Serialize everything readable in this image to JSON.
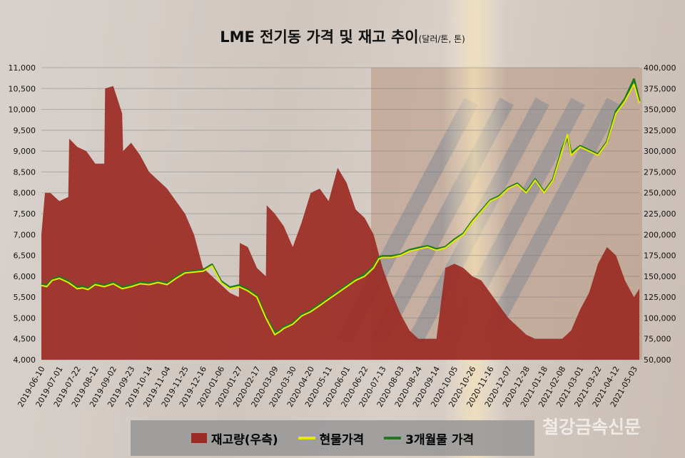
{
  "title": "LME 전기동 가격 및 재고 추이",
  "title_unit": "(달러/톤, 톤)",
  "watermark": "철강금속신문",
  "colors": {
    "inventory": "#9b2b24",
    "spot": "#e8e800",
    "three_month": "#1e7a1e"
  },
  "chart_data": {
    "type": "area+line",
    "left_axis": {
      "ticks": [
        "4,000",
        "4,500",
        "5,000",
        "5,500",
        "6,000",
        "6,500",
        "7,000",
        "7,500",
        "8,000",
        "8,500",
        "9,000",
        "9,500",
        "10,000",
        "10,500",
        "11,000"
      ],
      "ylim": [
        4000,
        11000
      ]
    },
    "right_axis": {
      "ticks": [
        "50,000",
        "75,000",
        "100,000",
        "125,000",
        "150,000",
        "175,000",
        "200,000",
        "225,000",
        "250,000",
        "275,000",
        "300,000",
        "325,000",
        "350,000",
        "375,000",
        "400,000"
      ],
      "ylim": [
        50000,
        400000
      ]
    },
    "x_ticks": [
      "2019-06-10",
      "2019-07-01",
      "2019-07-22",
      "2019-08-12",
      "2019-09-02",
      "2019-09-23",
      "2019-10-14",
      "2019-11-04",
      "2019-11-25",
      "2019-12-16",
      "2020-01-06",
      "2020-01-27",
      "2020-02-17",
      "2020-03-09",
      "2020-03-30",
      "2020-04-20",
      "2020-05-11",
      "2020-06-01",
      "2020-06-22",
      "2020-07-13",
      "2020-08-03",
      "2020-08-24",
      "2020-09-14",
      "2020-10-05",
      "2020-10-26",
      "2020-11-16",
      "2020-12-07",
      "2020-12-28",
      "2021-01-18",
      "2021-02-08",
      "2021-03-01",
      "2021-03-22",
      "2021-04-12",
      "2021-05-03"
    ],
    "legend": [
      {
        "name": "재고량(우측)",
        "swatch": "box",
        "color": "#9b2b24"
      },
      {
        "name": "현물가격",
        "swatch": "line",
        "color": "#e8e800"
      },
      {
        "name": "3개월물 가격",
        "swatch": "line",
        "color": "#1e7a1e"
      }
    ],
    "grid": true,
    "series": [
      {
        "axis": "right",
        "kind": "area",
        "x": [
          0.0,
          0.2,
          0.5,
          1.0,
          1.5,
          1.55,
          2.0,
          2.5,
          3.0,
          3.5,
          3.55,
          4.0,
          4.5,
          4.55,
          5.0,
          5.5,
          6.0,
          6.5,
          7.0,
          7.5,
          8.0,
          8.5,
          9.0,
          9.5,
          10.0,
          10.5,
          11.0,
          11.05,
          11.5,
          12.0,
          12.5,
          12.55,
          13.0,
          13.5,
          14.0,
          14.5,
          15.0,
          15.5,
          16.0,
          16.5,
          17.0,
          17.5,
          18.0,
          18.5,
          19.0,
          19.5,
          20.0,
          20.5,
          21.0,
          21.5,
          22.0,
          22.5,
          23.0,
          23.5,
          24.0,
          24.5,
          25.0,
          25.5,
          26.0,
          26.5,
          27.0,
          27.5,
          28.0,
          28.5,
          29.0,
          29.5,
          30.0,
          30.5,
          31.0,
          31.5,
          32.0,
          32.5,
          33.0,
          33.3
        ],
        "y": [
          200000,
          250000,
          250000,
          240000,
          245000,
          315000,
          305000,
          300000,
          285000,
          285000,
          375000,
          378000,
          345000,
          300000,
          310000,
          295000,
          275000,
          265000,
          255000,
          240000,
          225000,
          200000,
          160000,
          150000,
          140000,
          130000,
          125000,
          190000,
          185000,
          160000,
          150000,
          235000,
          225000,
          210000,
          185000,
          215000,
          250000,
          255000,
          240000,
          280000,
          262000,
          230000,
          220000,
          200000,
          160000,
          130000,
          105000,
          85000,
          75000,
          75000,
          75000,
          160000,
          165000,
          160000,
          150000,
          145000,
          130000,
          115000,
          100000,
          90000,
          80000,
          75000,
          75000,
          75000,
          75000,
          85000,
          110000,
          130000,
          165000,
          185000,
          175000,
          145000,
          125000,
          135000
        ]
      },
      {
        "axis": "left",
        "kind": "line",
        "name": "현물가격",
        "x": [
          0.0,
          0.3,
          0.6,
          1.0,
          1.5,
          2.0,
          2.3,
          2.6,
          3.0,
          3.5,
          4.0,
          4.5,
          5.0,
          5.5,
          6.0,
          6.5,
          7.0,
          7.5,
          8.0,
          8.5,
          9.0,
          9.5,
          10.0,
          10.5,
          11.0,
          11.5,
          12.0,
          12.5,
          13.0,
          13.3,
          13.5,
          14.0,
          14.5,
          15.0,
          15.5,
          16.0,
          16.5,
          17.0,
          17.5,
          18.0,
          18.5,
          18.8,
          19.0,
          19.5,
          20.0,
          20.5,
          21.0,
          21.5,
          22.0,
          22.5,
          23.0,
          23.5,
          24.0,
          24.5,
          25.0,
          25.5,
          26.0,
          26.5,
          27.0,
          27.5,
          28.0,
          28.5,
          29.0,
          29.3,
          29.5,
          30.0,
          30.5,
          31.0,
          31.5,
          32.0,
          32.5,
          33.0,
          33.3
        ],
        "y": [
          5780,
          5750,
          5900,
          5950,
          5850,
          5700,
          5720,
          5680,
          5800,
          5750,
          5820,
          5700,
          5750,
          5820,
          5800,
          5850,
          5800,
          5950,
          6080,
          6100,
          6120,
          6250,
          5850,
          5700,
          5750,
          5650,
          5500,
          5000,
          4600,
          4680,
          4750,
          4850,
          5050,
          5150,
          5300,
          5450,
          5600,
          5750,
          5900,
          6000,
          6200,
          6420,
          6450,
          6450,
          6500,
          6600,
          6650,
          6700,
          6620,
          6680,
          6850,
          7000,
          7300,
          7550,
          7800,
          7900,
          8100,
          8200,
          8000,
          8300,
          8000,
          8300,
          9000,
          9400,
          8900,
          9100,
          9000,
          8900,
          9200,
          9900,
          10200,
          10600,
          10150
        ]
      },
      {
        "axis": "left",
        "kind": "line",
        "name": "3개월물 가격",
        "x": [
          0.0,
          0.3,
          0.6,
          1.0,
          1.5,
          2.0,
          2.3,
          2.6,
          3.0,
          3.5,
          4.0,
          4.5,
          5.0,
          5.5,
          6.0,
          6.5,
          7.0,
          7.5,
          8.0,
          8.5,
          9.0,
          9.5,
          10.0,
          10.5,
          11.0,
          11.5,
          12.0,
          12.5,
          13.0,
          13.3,
          13.5,
          14.0,
          14.5,
          15.0,
          15.5,
          16.0,
          16.5,
          17.0,
          17.5,
          18.0,
          18.5,
          18.8,
          19.0,
          19.5,
          20.0,
          20.5,
          21.0,
          21.5,
          22.0,
          22.5,
          23.0,
          23.5,
          24.0,
          24.5,
          25.0,
          25.5,
          26.0,
          26.5,
          27.0,
          27.5,
          28.0,
          28.5,
          29.0,
          29.3,
          29.5,
          30.0,
          30.5,
          31.0,
          31.5,
          32.0,
          32.5,
          33.0,
          33.3
        ],
        "y": [
          5820,
          5780,
          5920,
          5980,
          5880,
          5730,
          5760,
          5700,
          5830,
          5780,
          5850,
          5730,
          5780,
          5850,
          5830,
          5870,
          5830,
          5980,
          6100,
          6120,
          6150,
          6280,
          5880,
          5730,
          5780,
          5680,
          5530,
          5020,
          4650,
          4700,
          4780,
          4880,
          5080,
          5180,
          5330,
          5480,
          5630,
          5780,
          5920,
          6050,
          6230,
          6450,
          6480,
          6480,
          6520,
          6630,
          6680,
          6720,
          6650,
          6700,
          6880,
          7020,
          7320,
          7570,
          7820,
          7920,
          8120,
          8220,
          8020,
          8320,
          8020,
          8320,
          9050,
          9350,
          8950,
          9120,
          9020,
          8920,
          9220,
          9950,
          10250,
          10720,
          10200
        ]
      }
    ]
  }
}
